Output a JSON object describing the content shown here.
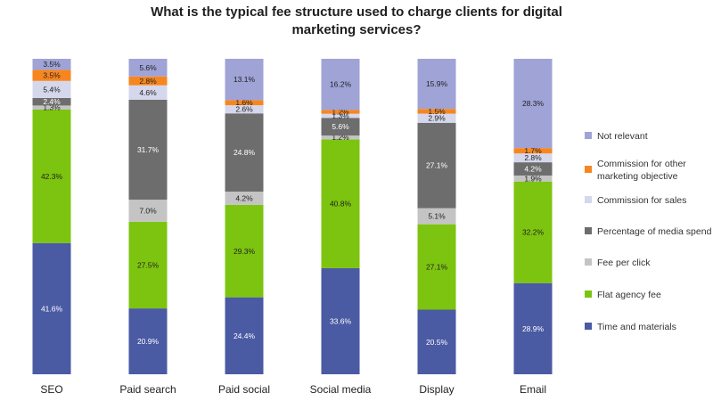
{
  "chart_data": {
    "type": "bar",
    "stacked": true,
    "title_line1": "What is the typical fee structure used to charge clients for digital",
    "title_line2": "marketing services?",
    "categories": [
      "SEO",
      "Paid search",
      "Paid social",
      "Social media",
      "Display",
      "Email"
    ],
    "ylim": [
      0,
      100
    ],
    "legend_position": "right",
    "series": [
      {
        "name": "Time and materials",
        "color": "#4a5aa3",
        "values": [
          41.6,
          20.9,
          24.4,
          33.6,
          20.5,
          28.9
        ]
      },
      {
        "name": "Flat agency fee",
        "color": "#7cc40f",
        "values": [
          42.3,
          27.5,
          29.3,
          40.8,
          27.1,
          32.2
        ]
      },
      {
        "name": "Fee per click",
        "color": "#c4c4c4",
        "values": [
          1.3,
          7.0,
          4.2,
          1.2,
          5.1,
          1.9
        ]
      },
      {
        "name": "Percentage of media spend",
        "color": "#6d6d6d",
        "values": [
          2.4,
          31.7,
          24.8,
          5.6,
          27.1,
          4.2
        ]
      },
      {
        "name": "Commission for sales",
        "color": "#d5d7ec",
        "values": [
          5.4,
          4.6,
          2.6,
          1.3,
          2.9,
          2.8
        ]
      },
      {
        "name": "Commission for other marketing objective",
        "legend_lines": [
          "Commission for other",
          "marketing objective"
        ],
        "color": "#f7861f",
        "values": [
          3.5,
          2.8,
          1.6,
          1.2,
          1.5,
          1.7
        ]
      },
      {
        "name": "Not relevant",
        "color": "#9fa3d6",
        "values": [
          3.5,
          5.6,
          13.1,
          16.2,
          15.9,
          28.3
        ]
      }
    ],
    "value_labels": [
      [
        "41.6%",
        "42.3%",
        "1.3%",
        "2.4%",
        "5.4%",
        "3.5%",
        "3.5%"
      ],
      [
        "20.9%",
        "27.5%",
        "7.0%",
        "31.7%",
        "4.6%",
        "2.8%",
        "5.6%"
      ],
      [
        "24.4%",
        "29.3%",
        "4.2%",
        "24.8%",
        "2.6%",
        "1.6%",
        "13.1%"
      ],
      [
        "33.6%",
        "40.8%",
        "1.2%",
        "5.6%",
        "1.3%",
        "1.2%",
        "16.2%"
      ],
      [
        "20.5%",
        "27.1%",
        "5.1%",
        "27.1%",
        "2.9%",
        "1.5%",
        "15.9%"
      ],
      [
        "28.9%",
        "32.2%",
        "1.9%",
        "4.2%",
        "2.8%",
        "1.7%",
        "28.3%"
      ]
    ]
  }
}
